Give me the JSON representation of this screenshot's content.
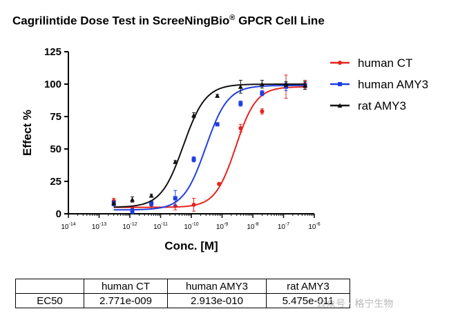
{
  "title": {
    "main": "Cagrilintide Dose Test in ScreeNingBio",
    "sup": "®",
    "tail": " GPCR Cell Line"
  },
  "chart_data": {
    "type": "scatter",
    "xscale": "log",
    "xlim": [
      1e-14,
      1e-06
    ],
    "ylim": [
      0,
      125
    ],
    "xlabel": "Conc. [M]",
    "ylabel": "Effect %",
    "yticks": [
      "0",
      "25",
      "50",
      "75",
      "100",
      "125"
    ],
    "xticks": [
      {
        "base": "10",
        "exp": "-14"
      },
      {
        "base": "10",
        "exp": "-13"
      },
      {
        "base": "10",
        "exp": "-12"
      },
      {
        "base": "10",
        "exp": "-11"
      },
      {
        "base": "10",
        "exp": "-10"
      },
      {
        "base": "10",
        "exp": "-9"
      },
      {
        "base": "10",
        "exp": "-8"
      },
      {
        "base": "10",
        "exp": "-7"
      },
      {
        "base": "10",
        "exp": "-6"
      }
    ],
    "legend_position": "right",
    "series": [
      {
        "name": "human CT",
        "color": "#e8221d",
        "marker": "circle",
        "fit": {
          "bottom": 5,
          "top": 98,
          "ec50": 2.771e-09,
          "hill": 1.3
        },
        "points": [
          {
            "x": 3e-13,
            "y": 10,
            "err": 2
          },
          {
            "x": 1.2e-12,
            "y": 3,
            "err": 1.5
          },
          {
            "x": 5e-12,
            "y": 7,
            "err": 3
          },
          {
            "x": 3e-11,
            "y": 6,
            "err": 3
          },
          {
            "x": 1.2e-10,
            "y": 7,
            "err": 5
          },
          {
            "x": 8e-10,
            "y": 23,
            "err": 1
          },
          {
            "x": 4e-09,
            "y": 66,
            "err": 3
          },
          {
            "x": 2e-08,
            "y": 79,
            "err": 2
          },
          {
            "x": 1.2e-07,
            "y": 98,
            "err": 9
          },
          {
            "x": 5e-07,
            "y": 100,
            "err": 3
          }
        ]
      },
      {
        "name": "human AMY3",
        "color": "#1f3ee0",
        "marker": "square",
        "fit": {
          "bottom": 3,
          "top": 99,
          "ec50": 2.913e-10,
          "hill": 1.2
        },
        "points": [
          {
            "x": 3e-13,
            "y": 8,
            "err": 2
          },
          {
            "x": 1.2e-12,
            "y": 2,
            "err": 2
          },
          {
            "x": 5e-12,
            "y": 8,
            "err": 2
          },
          {
            "x": 3e-11,
            "y": 12,
            "err": 6
          },
          {
            "x": 1.2e-10,
            "y": 42,
            "err": 2
          },
          {
            "x": 7e-10,
            "y": 69,
            "err": 1
          },
          {
            "x": 4e-09,
            "y": 85,
            "err": 2
          },
          {
            "x": 2e-08,
            "y": 93,
            "err": 2
          },
          {
            "x": 1.2e-07,
            "y": 98,
            "err": 3
          },
          {
            "x": 5e-07,
            "y": 99,
            "err": 3
          }
        ]
      },
      {
        "name": "rat AMY3",
        "color": "#111111",
        "marker": "triangle",
        "fit": {
          "bottom": 5,
          "top": 100,
          "ec50": 5.475e-11,
          "hill": 1.2
        },
        "points": [
          {
            "x": 3e-13,
            "y": 8,
            "err": 1
          },
          {
            "x": 1.2e-12,
            "y": 11,
            "err": 2
          },
          {
            "x": 5e-12,
            "y": 14,
            "err": 1
          },
          {
            "x": 3e-11,
            "y": 40,
            "err": 1
          },
          {
            "x": 1.2e-10,
            "y": 76,
            "err": 2
          },
          {
            "x": 7e-10,
            "y": 91,
            "err": 1
          },
          {
            "x": 4e-09,
            "y": 98,
            "err": 5
          },
          {
            "x": 2e-08,
            "y": 100,
            "err": 3
          },
          {
            "x": 1.2e-07,
            "y": 100,
            "err": 2
          },
          {
            "x": 5e-07,
            "y": 99,
            "err": 3
          }
        ]
      }
    ]
  },
  "ec50_table": {
    "headers": [
      "",
      "human CT",
      "human AMY3",
      "rat AMY3"
    ],
    "row_label": "EC50",
    "values": [
      "2.771e-009",
      "2.913e-010",
      "5.475e-011"
    ]
  },
  "watermark": "公众号 · 格宁生物"
}
